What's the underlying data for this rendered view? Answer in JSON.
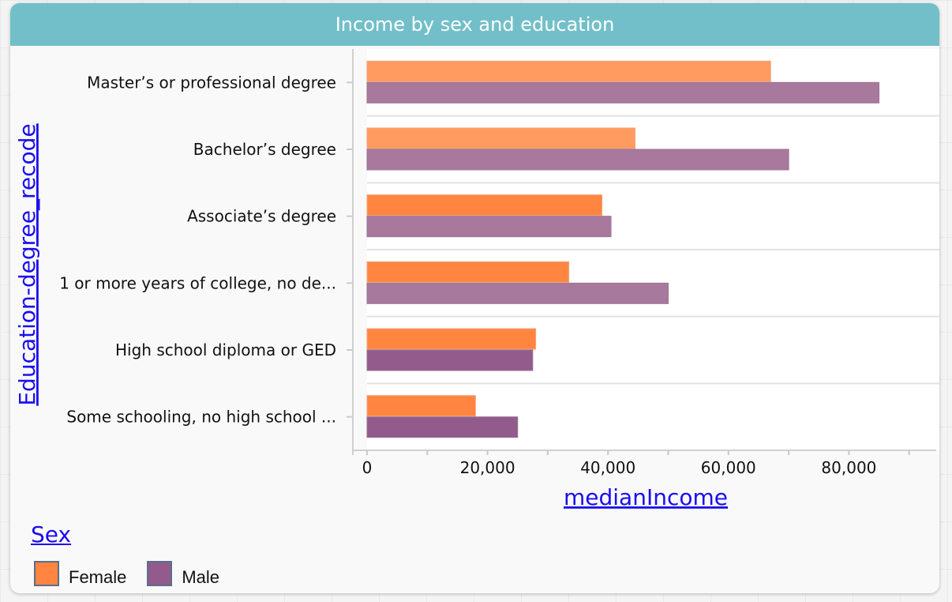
{
  "chart_data": {
    "type": "bar",
    "orientation": "horizontal",
    "title": "Income by sex and education",
    "xlabel": "medianIncome",
    "ylabel": "Education-degree_recode",
    "xlim": [
      0,
      95000
    ],
    "xticks": [
      0,
      20000,
      40000,
      60000,
      80000
    ],
    "xtick_labels": [
      "0",
      "20,000",
      "40,000",
      "60,000",
      "80,000"
    ],
    "categories": [
      "Master’s or professional degree",
      "Bachelor’s degree",
      "Associate’s degree",
      "1 or more years of college, no de...",
      "High school diploma or GED",
      "Some schooling, no high school ..."
    ],
    "series": [
      {
        "name": "Female",
        "color": "#ff8540",
        "values": [
          67000,
          44500,
          39000,
          33500,
          28000,
          18000
        ]
      },
      {
        "name": "Male",
        "color": "#935b8c",
        "values": [
          85000,
          70000,
          40500,
          50000,
          27500,
          25000
        ]
      }
    ],
    "grid": true,
    "legend": {
      "title": "Sex",
      "placement": "bottom-left"
    }
  }
}
